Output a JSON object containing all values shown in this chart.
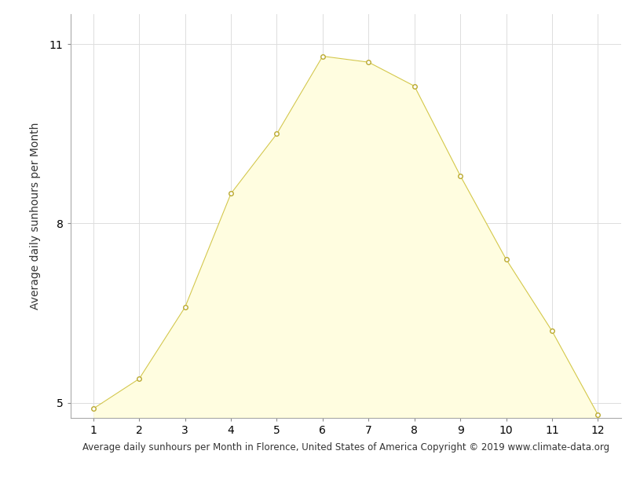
{
  "months": [
    1,
    2,
    3,
    4,
    5,
    6,
    7,
    8,
    9,
    10,
    11,
    12
  ],
  "sunhours": [
    4.9,
    5.4,
    6.6,
    8.5,
    9.5,
    10.8,
    10.7,
    10.3,
    8.8,
    7.4,
    6.2,
    4.8
  ],
  "fill_color": "#FFFDE0",
  "line_color": "#D4C84A",
  "marker_face_color": "#FFFFFF",
  "marker_edge_color": "#BBAA30",
  "ylabel": "Average daily sunhours per Month",
  "xlabel": "Average daily sunhours per Month in Florence, United States of America Copyright © 2019 www.climate-data.org",
  "ylim_min": 4.75,
  "ylim_max": 11.5,
  "xlim_min": 0.5,
  "xlim_max": 12.5,
  "yticks": [
    5,
    8,
    11
  ],
  "xticks": [
    1,
    2,
    3,
    4,
    5,
    6,
    7,
    8,
    9,
    10,
    11,
    12
  ],
  "fill_baseline": 4.75,
  "grid_color": "#DDDDDD",
  "background_color": "#FFFFFF",
  "ylabel_fontsize": 10,
  "xlabel_fontsize": 8.5,
  "tick_labelsize": 10
}
